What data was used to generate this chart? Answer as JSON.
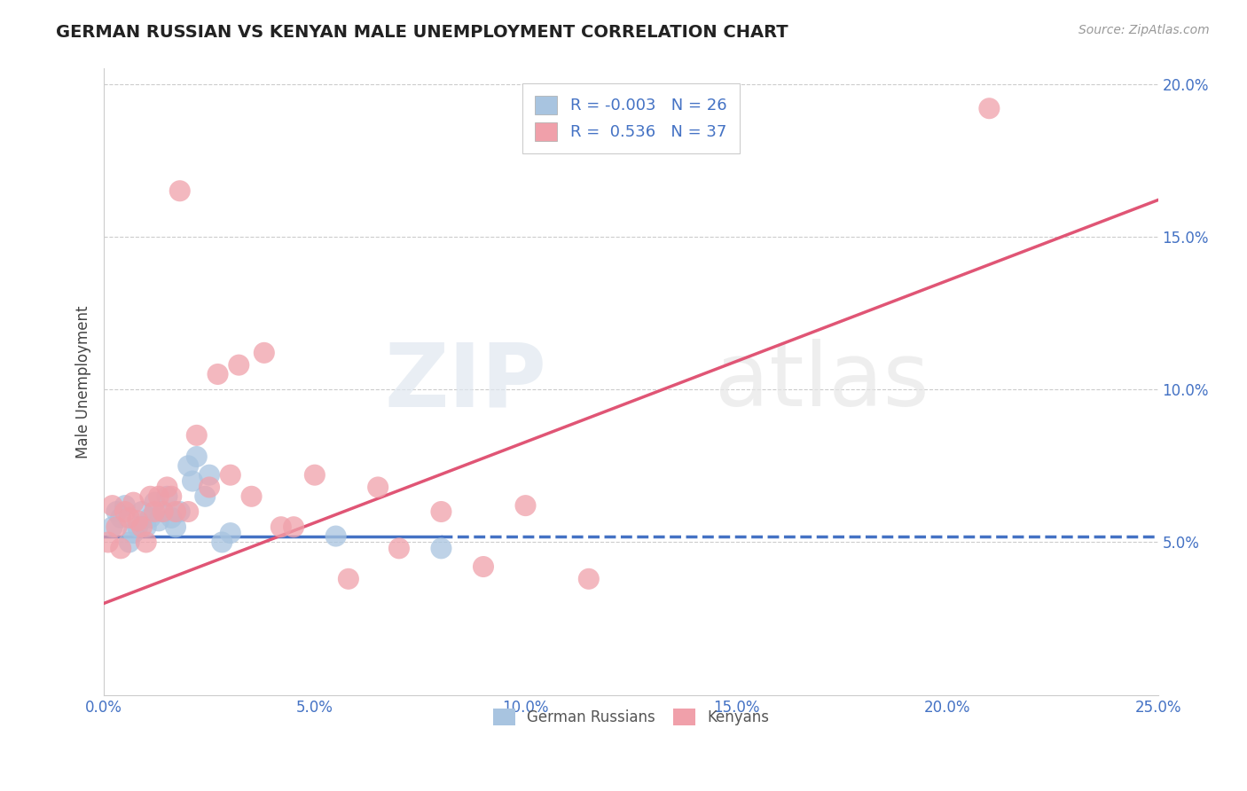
{
  "title": "GERMAN RUSSIAN VS KENYAN MALE UNEMPLOYMENT CORRELATION CHART",
  "source": "Source: ZipAtlas.com",
  "ylabel": "Male Unemployment",
  "xlim": [
    0.0,
    0.25
  ],
  "ylim": [
    0.0,
    0.205
  ],
  "xticks": [
    0.0,
    0.05,
    0.1,
    0.15,
    0.2,
    0.25
  ],
  "xticklabels": [
    "0.0%",
    "5.0%",
    "10.0%",
    "15.0%",
    "20.0%",
    "25.0%"
  ],
  "yticks": [
    0.0,
    0.05,
    0.1,
    0.15,
    0.2
  ],
  "yticklabels": [
    "",
    "5.0%",
    "10.0%",
    "15.0%",
    "20.0%"
  ],
  "german_russian_color": "#a8c4e0",
  "kenyan_color": "#f0a0aa",
  "german_russian_line_color": "#4472c4",
  "kenyan_line_color": "#e05575",
  "R_german": -0.003,
  "N_german": 26,
  "R_kenyan": 0.536,
  "N_kenyan": 37,
  "watermark_zip": "ZIP",
  "watermark_atlas": "atlas",
  "legend_german": "German Russians",
  "legend_kenyan": "Kenyans",
  "german_russian_x": [
    0.002,
    0.003,
    0.004,
    0.005,
    0.006,
    0.007,
    0.008,
    0.009,
    0.01,
    0.011,
    0.012,
    0.013,
    0.014,
    0.015,
    0.016,
    0.017,
    0.018,
    0.02,
    0.021,
    0.022,
    0.024,
    0.025,
    0.028,
    0.03,
    0.055,
    0.08
  ],
  "german_russian_y": [
    0.055,
    0.06,
    0.058,
    0.062,
    0.05,
    0.053,
    0.055,
    0.06,
    0.055,
    0.058,
    0.063,
    0.057,
    0.06,
    0.065,
    0.058,
    0.055,
    0.06,
    0.075,
    0.07,
    0.078,
    0.065,
    0.072,
    0.05,
    0.053,
    0.052,
    0.048
  ],
  "kenyan_x": [
    0.001,
    0.002,
    0.003,
    0.004,
    0.005,
    0.006,
    0.007,
    0.008,
    0.009,
    0.01,
    0.011,
    0.012,
    0.013,
    0.014,
    0.015,
    0.016,
    0.017,
    0.018,
    0.02,
    0.022,
    0.025,
    0.027,
    0.03,
    0.032,
    0.035,
    0.038,
    0.042,
    0.045,
    0.05,
    0.058,
    0.065,
    0.07,
    0.08,
    0.09,
    0.1,
    0.115,
    0.21
  ],
  "kenyan_y": [
    0.05,
    0.062,
    0.055,
    0.048,
    0.06,
    0.058,
    0.063,
    0.057,
    0.055,
    0.05,
    0.065,
    0.06,
    0.065,
    0.06,
    0.068,
    0.065,
    0.06,
    0.165,
    0.06,
    0.085,
    0.068,
    0.105,
    0.072,
    0.108,
    0.065,
    0.112,
    0.055,
    0.055,
    0.072,
    0.038,
    0.068,
    0.048,
    0.06,
    0.042,
    0.062,
    0.038,
    0.192
  ],
  "gr_line_x0": 0.0,
  "gr_line_y0": 0.052,
  "gr_line_x1": 0.25,
  "gr_line_y1": 0.052,
  "ke_line_x0": 0.0,
  "ke_line_y0": 0.03,
  "ke_line_x1": 0.25,
  "ke_line_y1": 0.162
}
